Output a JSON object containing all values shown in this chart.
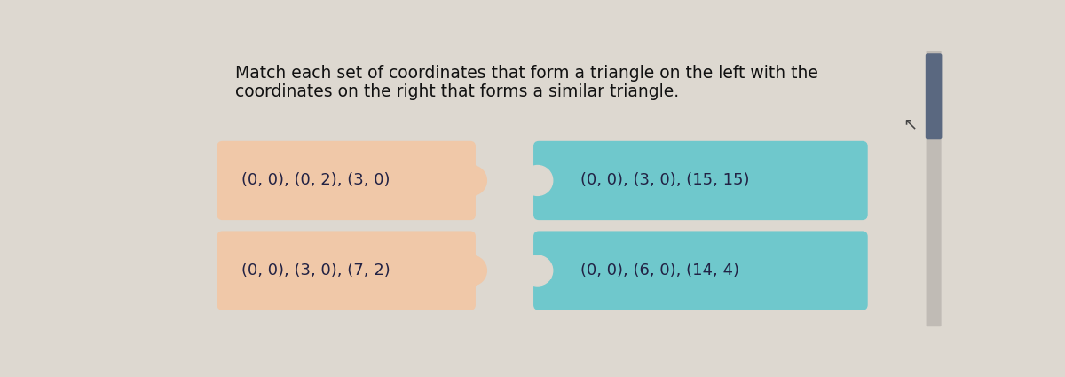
{
  "title_line1": "Match each set of coordinates that form a triangle on the left with the",
  "title_line2": "coordinates on the right that forms a similar triangle.",
  "left_boxes": [
    {
      "label": "(0, 0), (0, 2), (3, 0)",
      "color": "#f0c8a8"
    },
    {
      "label": "(0, 0), (3, 0), (7, 2)",
      "color": "#f0c8a8"
    }
  ],
  "right_boxes": [
    {
      "label": "(0, 0), (3, 0), (15, 15)",
      "color": "#6fc8cc"
    },
    {
      "label": "(0, 0), (6, 0), (14, 4)",
      "color": "#6fc8cc"
    }
  ],
  "bg_color": "#ddd8d0",
  "title_color": "#111111",
  "label_color": "#222244",
  "scrollbar_track": "#c0bbb5",
  "scrollbar_handle": "#5a6880",
  "title_fontsize": 13.5,
  "label_fontsize": 13
}
